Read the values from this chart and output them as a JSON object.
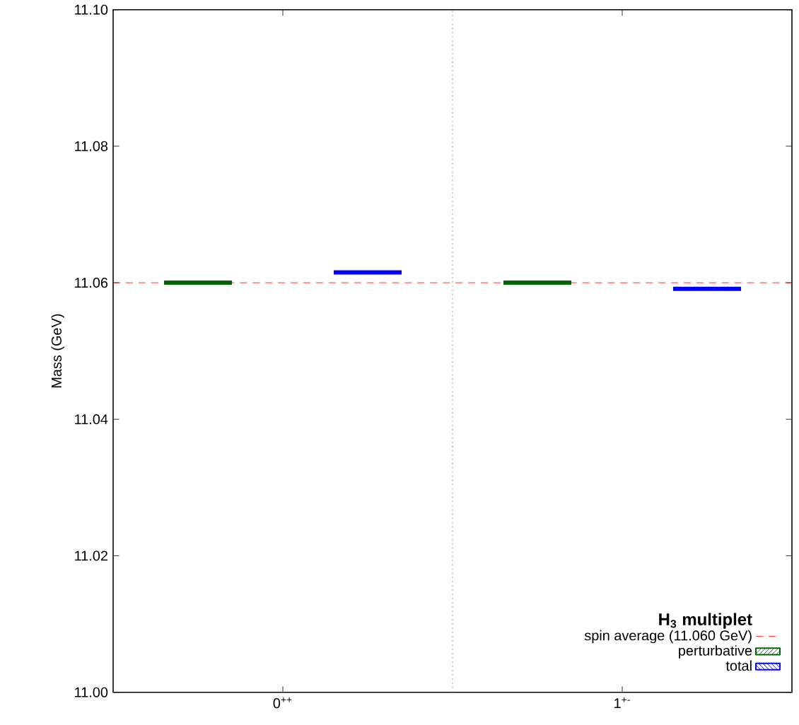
{
  "chart_data": {
    "type": "line",
    "ylabel": "Mass (GeV)",
    "legend_title": "H$_{3}$ multiplet",
    "xlim": [
      -0.5,
      1.5
    ],
    "xticks": [
      {
        "value": 0,
        "label": "0$^{++}$"
      },
      {
        "value": 1,
        "label": "1$^{+-}$"
      }
    ],
    "ylim": [
      11.0,
      11.1
    ],
    "yticks": [
      {
        "value": 11.0,
        "label": "11.00"
      },
      {
        "value": 11.02,
        "label": "11.02"
      },
      {
        "value": 11.04,
        "label": "11.04"
      },
      {
        "value": 11.06,
        "label": "11.06"
      },
      {
        "value": 11.08,
        "label": "11.08"
      },
      {
        "value": 11.1,
        "label": "11.10"
      }
    ],
    "series": [
      {
        "name": "perturbative",
        "color": "#006400",
        "x": [
          -0.35,
          -0.15,
          0.25,
          0.65,
          0.85
        ],
        "values": [
          11.06,
          11.06,
          null,
          11.06,
          11.06
        ]
      },
      {
        "name": "total",
        "color": "#0000ff",
        "x": [
          0.15,
          0.35,
          0.75,
          1.15,
          1.35
        ],
        "values": [
          11.0615,
          11.0615,
          null,
          11.0591,
          11.0591
        ]
      }
    ],
    "ref_lines": [
      {
        "axis": "y",
        "value": 11.06,
        "label": "spin average (11.060 GeV)",
        "color": "#ff0000",
        "line_style": "dashed"
      },
      {
        "axis": "x",
        "value": 0.5,
        "color": "#808080",
        "line_style": "dotted"
      }
    ],
    "legend": "bottom right",
    "marker": "none",
    "line_style": "solid",
    "grid": false
  }
}
